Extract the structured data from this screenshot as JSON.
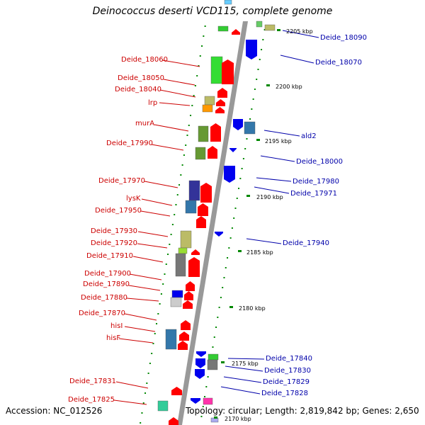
{
  "title": "Deinococcus deserti VCD115, complete genome",
  "footer": {
    "accession": "Accession: NC_012526",
    "summary": "Topology: circular; Length: 2,819,842 bp; Genes: 2,650"
  },
  "colors": {
    "left_label": "#cc0000",
    "right_label": "#0000aa",
    "forward_gene": "#ff0000",
    "reverse_gene": "#0000ff",
    "backbone": "#999999",
    "tick": "#008800"
  },
  "ticks": [
    "2205 kbp",
    "2200 kbp",
    "2195 kbp",
    "2190 kbp",
    "2185 kbp",
    "2180 kbp",
    "2175 kbp",
    "2170 kbp"
  ],
  "left_labels": [
    "Deide_18060",
    "Deide_18050",
    "Deide_18040",
    "lrp",
    "murA",
    "Deide_17990",
    "Deide_17970",
    "lysK",
    "Deide_17950",
    "Deide_17930",
    "Deide_17920",
    "Deide_17910",
    "Deide_17900",
    "Deide_17890",
    "Deide_17880",
    "Deide_17870",
    "hisI",
    "hisF",
    "Deide_17831",
    "Deide_17825"
  ],
  "right_labels": [
    "Deide_18090",
    "Deide_18070",
    "ald2",
    "Deide_18000",
    "Deide_17980",
    "Deide_17971",
    "Deide_17940",
    "Deide_17840",
    "Deide_17830",
    "Deide_17829",
    "Deide_17828"
  ]
}
